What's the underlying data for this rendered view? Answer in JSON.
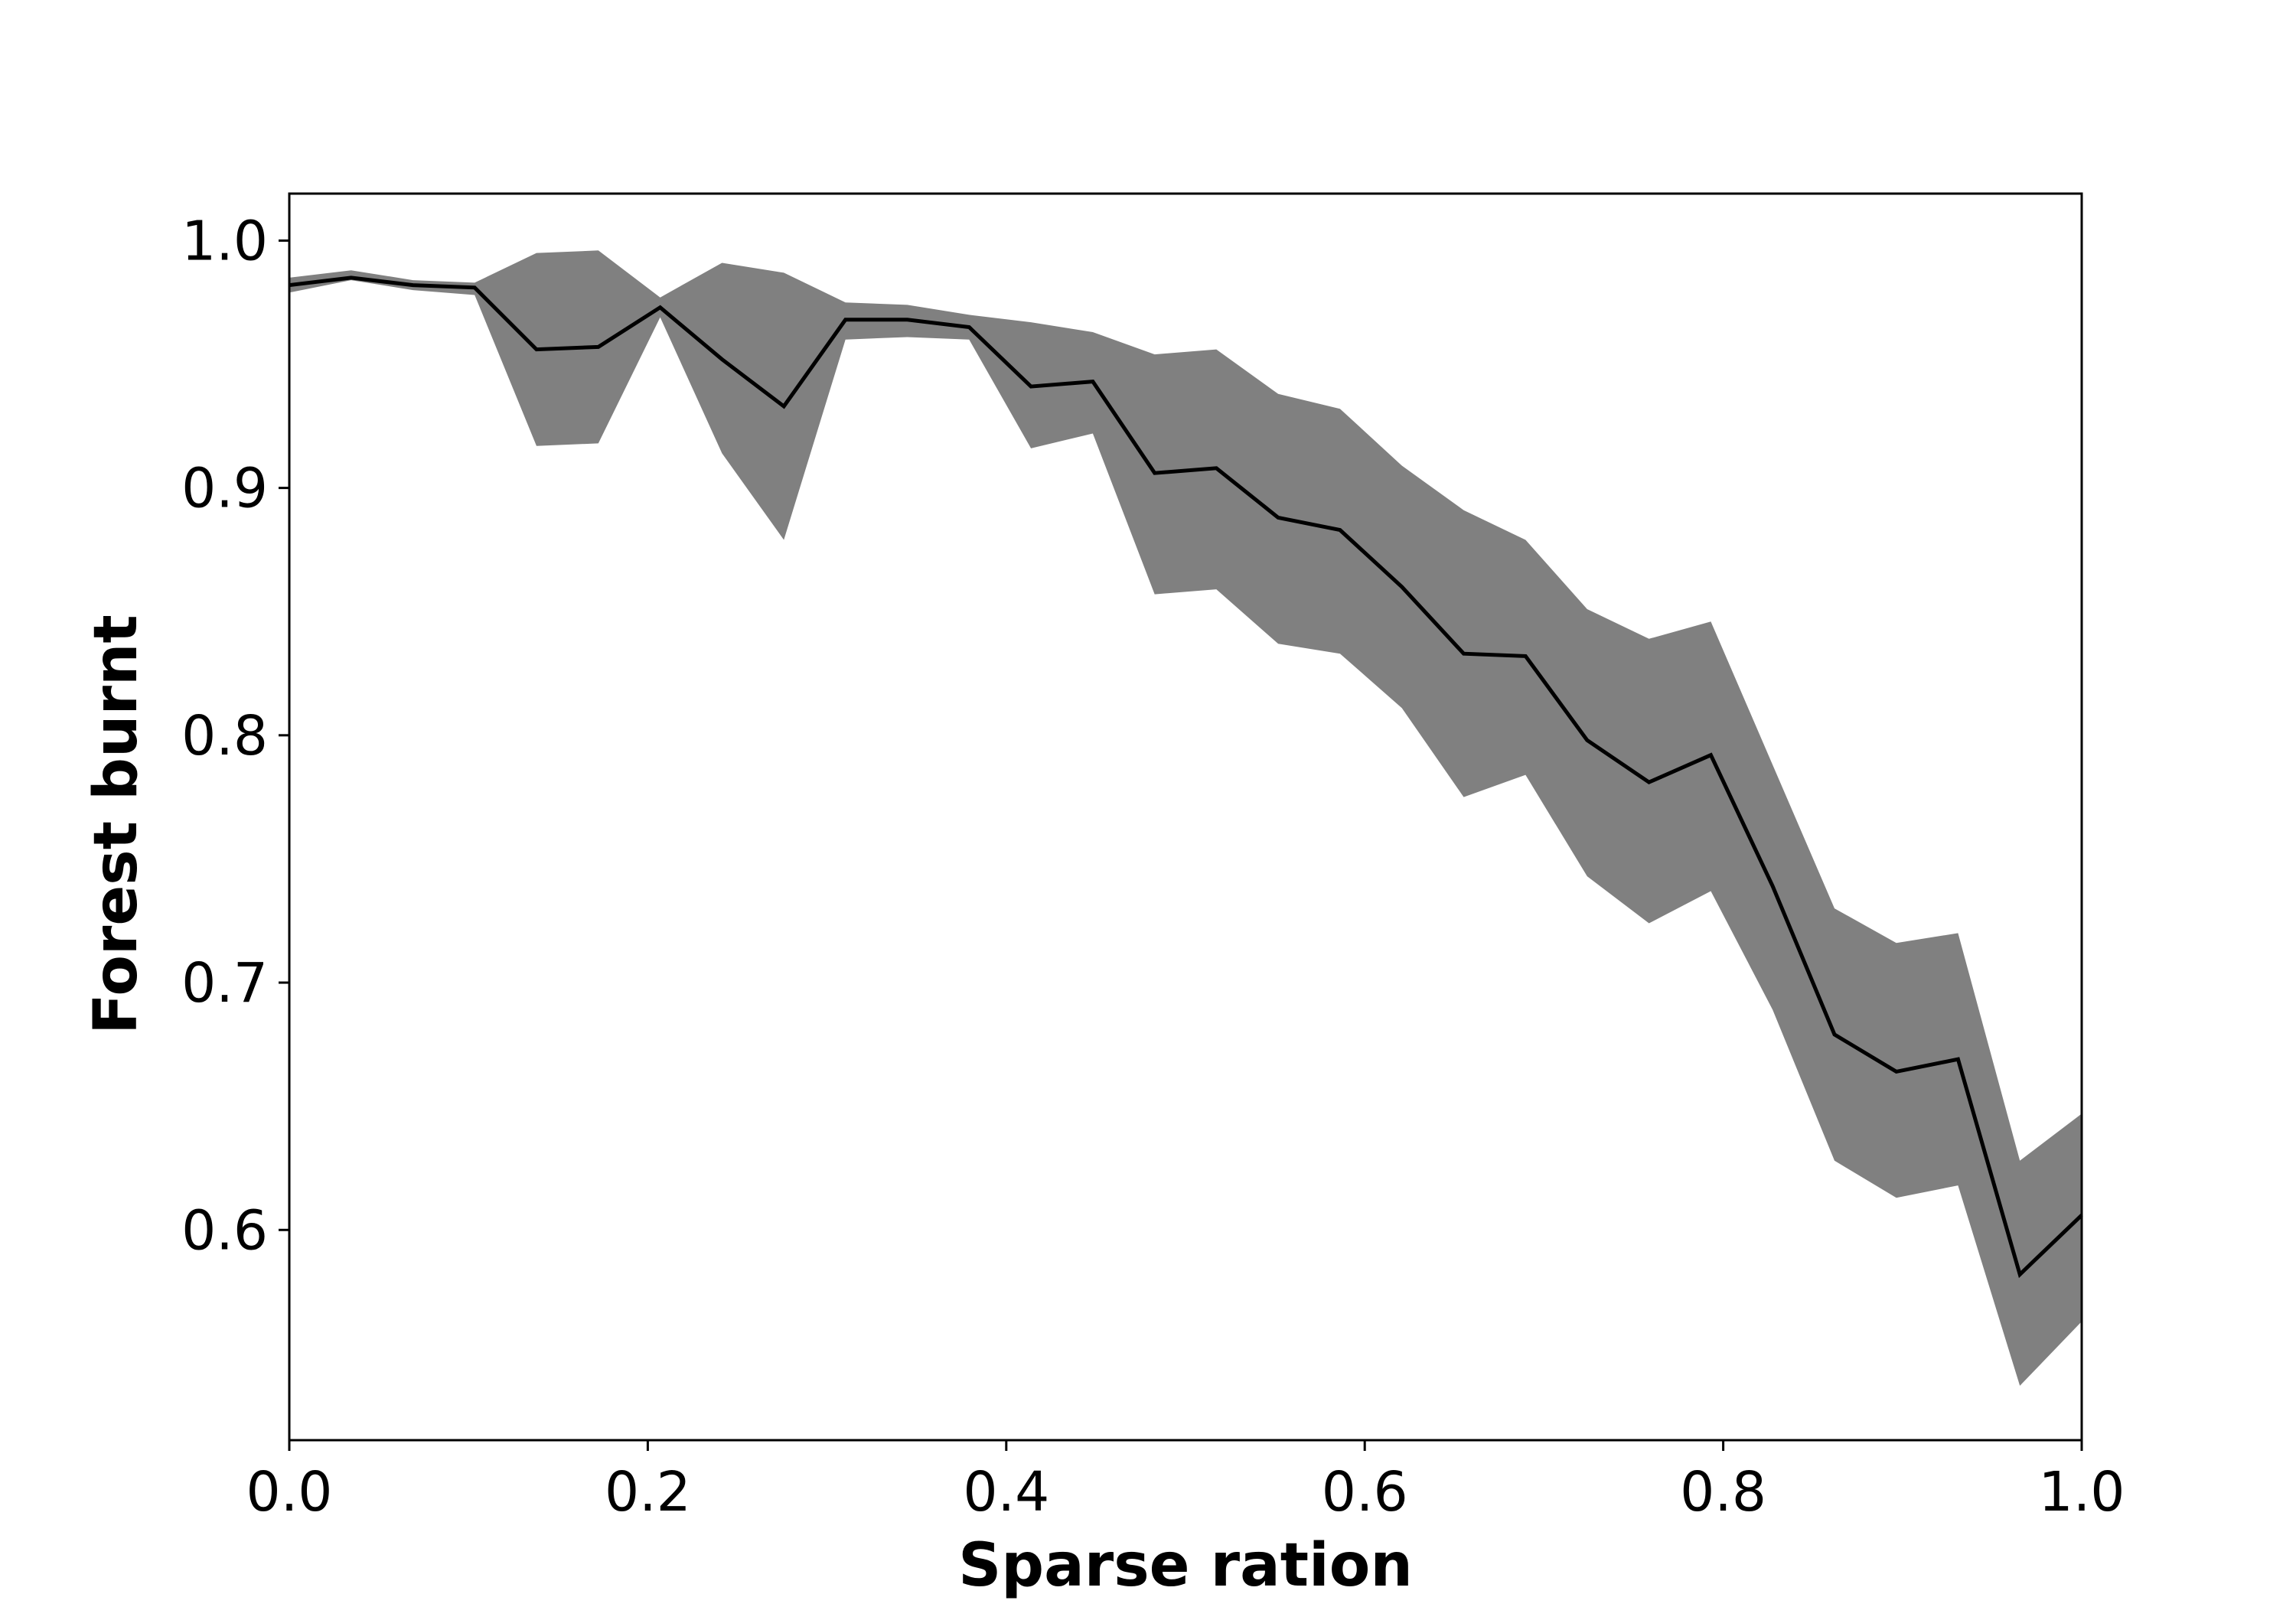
{
  "chart_data": {
    "type": "line",
    "title": "",
    "xlabel": "Sparse ration",
    "ylabel": "Forest burnt",
    "xlim": [
      0.0,
      1.0
    ],
    "ylim": [
      0.515,
      1.019
    ],
    "grid": false,
    "legend": "none",
    "xticks": [
      0.0,
      0.2,
      0.4,
      0.6,
      0.8,
      1.0
    ],
    "xtick_labels": [
      "0.0",
      "0.2",
      "0.4",
      "0.6",
      "0.8",
      "1.0"
    ],
    "yticks": [
      0.6,
      0.7,
      0.8,
      0.9,
      1.0
    ],
    "ytick_labels": [
      "0.6",
      "0.7",
      "0.8",
      "0.9",
      "1.0"
    ],
    "colors": {
      "line": "#000000",
      "band": "#808080",
      "axes": "#000000",
      "background": "#ffffff"
    },
    "series": [
      {
        "kind": "mean-line",
        "x": [
          0.0,
          0.0345,
          0.069,
          0.1034,
          0.1379,
          0.1724,
          0.2069,
          0.2414,
          0.2759,
          0.3103,
          0.3448,
          0.3793,
          0.4138,
          0.4483,
          0.4828,
          0.5172,
          0.5517,
          0.5862,
          0.6207,
          0.6552,
          0.6897,
          0.7241,
          0.7586,
          0.7931,
          0.8276,
          0.8621,
          0.8966,
          0.931,
          0.9655,
          1.0
        ],
        "y": [
          0.982,
          0.985,
          0.982,
          0.981,
          0.956,
          0.957,
          0.973,
          0.952,
          0.933,
          0.968,
          0.968,
          0.965,
          0.941,
          0.943,
          0.906,
          0.908,
          0.888,
          0.883,
          0.86,
          0.833,
          0.832,
          0.798,
          0.781,
          0.792,
          0.739,
          0.679,
          0.664,
          0.669,
          0.582,
          0.606
        ]
      },
      {
        "kind": "band",
        "x": [
          0.0,
          0.0345,
          0.069,
          0.1034,
          0.1379,
          0.1724,
          0.2069,
          0.2414,
          0.2759,
          0.3103,
          0.3448,
          0.3793,
          0.4138,
          0.4483,
          0.4828,
          0.5172,
          0.5517,
          0.5862,
          0.6207,
          0.6552,
          0.6897,
          0.7241,
          0.7586,
          0.7931,
          0.8276,
          0.8621,
          0.8966,
          0.931,
          0.9655,
          1.0
        ],
        "upper": [
          0.985,
          0.988,
          0.984,
          0.983,
          0.995,
          0.996,
          0.977,
          0.991,
          0.987,
          0.975,
          0.974,
          0.97,
          0.967,
          0.963,
          0.954,
          0.956,
          0.938,
          0.932,
          0.909,
          0.891,
          0.879,
          0.851,
          0.839,
          0.846,
          0.788,
          0.73,
          0.716,
          0.72,
          0.628,
          0.647
        ],
        "lower": [
          0.979,
          0.984,
          0.98,
          0.978,
          0.917,
          0.918,
          0.969,
          0.914,
          0.879,
          0.96,
          0.961,
          0.96,
          0.916,
          0.922,
          0.857,
          0.859,
          0.837,
          0.833,
          0.811,
          0.775,
          0.784,
          0.743,
          0.724,
          0.737,
          0.689,
          0.628,
          0.613,
          0.618,
          0.537,
          0.563
        ]
      }
    ]
  }
}
